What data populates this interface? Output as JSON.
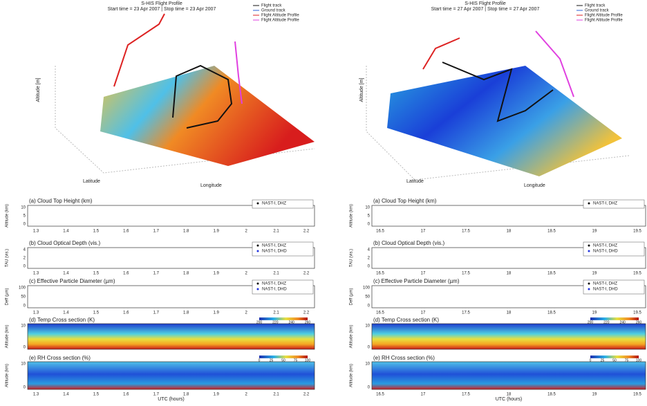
{
  "left": {
    "map": {
      "title": "S-HIS Flight Profile",
      "subtitle": "Start time = 23 Apr 2007 | Stop time = 23 Apr 2007",
      "legend": [
        "Flight track",
        "Ground track",
        "Flight Altitude Profile",
        "Flight Altitude Profile"
      ],
      "xlabel": "Longitude",
      "ylabel": "Latitude",
      "zlabel": "Altitude [m]"
    },
    "panels": [
      {
        "title": "(a) Cloud Top Height (km)",
        "ylabel": "Altitude (km)",
        "yticks": [
          "0",
          "5",
          "10"
        ],
        "legend": [
          "NAST-I, DHZ"
        ]
      },
      {
        "title": "(b) Cloud Optical Depth (vis.)",
        "ylabel": "TAU (vis.)",
        "yticks": [
          "0",
          "2",
          "4"
        ],
        "legend": [
          "NAST-I, DHZ",
          "NAST-I, DHD"
        ]
      },
      {
        "title": "(c) Effective Particle Diameter (µm)",
        "ylabel": "Deff (µm)",
        "yticks": [
          "0",
          "50",
          "100"
        ],
        "legend": [
          "NAST-I, DHZ",
          "NAST-I, DHD"
        ]
      },
      {
        "title": "(d) Temp Cross section (K)",
        "ylabel": "Altitude (km)",
        "yticks": [
          "0",
          "10"
        ],
        "colorbar": [
          "200",
          "220",
          "240",
          "260"
        ]
      },
      {
        "title": "(e) RH Cross section (%)",
        "ylabel": "Altitude (km)",
        "yticks": [
          "0",
          "10"
        ],
        "colorbar": [
          "0",
          "25",
          "50",
          "75",
          "100"
        ]
      }
    ],
    "xticks": [
      "1.3",
      "1.4",
      "1.5",
      "1.6",
      "1.7",
      "1.8",
      "1.9",
      "2",
      "2.1",
      "2.2"
    ],
    "xlabel": "UTC (hours)"
  },
  "right": {
    "map": {
      "title": "S-HIS Flight Profile",
      "subtitle": "Start time = 27 Apr 2007 | Stop time = 27 Apr 2007",
      "legend": [
        "Flight track",
        "Ground track",
        "Flight Altitude Profile",
        "Flight Altitude Profile"
      ],
      "xlabel": "Longitude",
      "ylabel": "Latitude",
      "zlabel": "Altitude [m]"
    },
    "panels": [
      {
        "title": "(a) Cloud Top Height (km)",
        "ylabel": "Altitude (km)",
        "yticks": [
          "0",
          "5",
          "10"
        ],
        "legend": [
          "NAST-I, DHZ"
        ]
      },
      {
        "title": "(b) Cloud Optical Depth (vis.)",
        "ylabel": "TAU (vis.)",
        "yticks": [
          "0",
          "2",
          "4"
        ],
        "legend": [
          "NAST-I, DHZ",
          "NAST-I, DHD"
        ]
      },
      {
        "title": "(c) Effective Particle Diameter (µm)",
        "ylabel": "Deff (µm)",
        "yticks": [
          "0",
          "50",
          "100"
        ],
        "legend": [
          "NAST-I, DHZ",
          "NAST-I, DHD"
        ]
      },
      {
        "title": "(d) Temp Cross section (K)",
        "ylabel": "Altitude (km)",
        "yticks": [
          "0",
          "10"
        ],
        "colorbar": [
          "200",
          "220",
          "240",
          "260"
        ]
      },
      {
        "title": "(e) RH Cross section (%)",
        "ylabel": "Altitude (km)",
        "yticks": [
          "0",
          "10"
        ],
        "colorbar": [
          "0",
          "25",
          "50",
          "75",
          "100"
        ]
      }
    ],
    "xticks": [
      "16.5",
      "17",
      "17.5",
      "18",
      "18.5",
      "19",
      "19.5"
    ],
    "xlabel": "UTC (hours)"
  }
}
